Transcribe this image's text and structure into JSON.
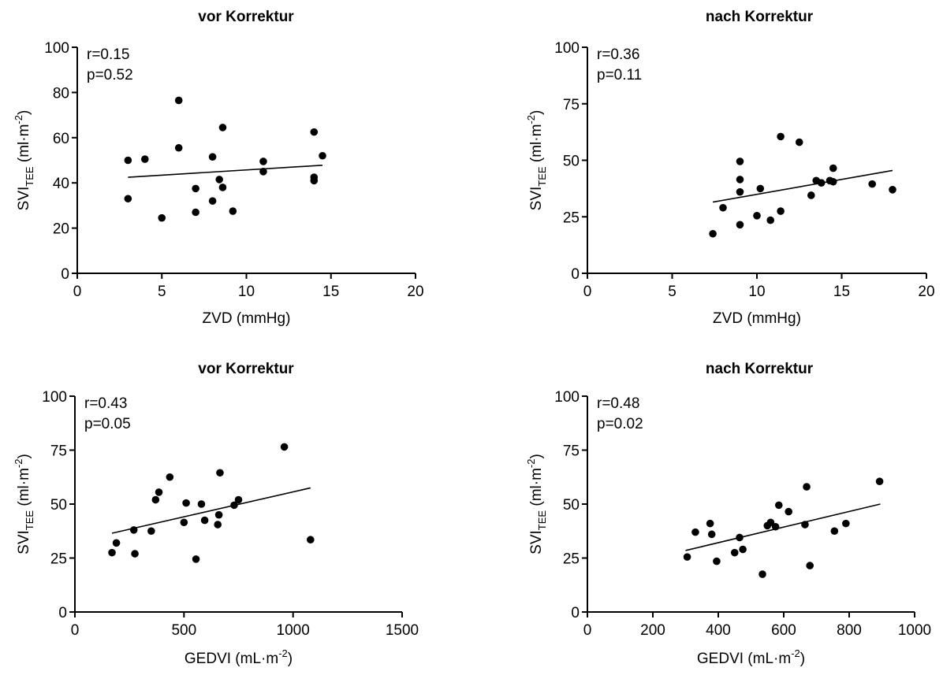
{
  "chart_data": [
    {
      "type": "scatter",
      "title": "vor Korrektur",
      "xlabel": "ZVD (mmHg)",
      "ylabel": {
        "base": "SVI",
        "sub": "TEE",
        "unit_pre": " (ml·m",
        "unit_sup": "-2",
        "unit_post": ")"
      },
      "xlim": [
        0,
        20
      ],
      "ylim": [
        0,
        100
      ],
      "xticks": [
        0,
        5,
        10,
        15,
        20
      ],
      "yticks": [
        0,
        20,
        40,
        60,
        80,
        100
      ],
      "stats": [
        "r=0.15",
        "p=0.52"
      ],
      "regression": [
        [
          3,
          42.5
        ],
        [
          14.5,
          47.8
        ]
      ],
      "points": [
        {
          "x": 3,
          "y": 50
        },
        {
          "x": 3,
          "y": 33
        },
        {
          "x": 4,
          "y": 50.5
        },
        {
          "x": 5,
          "y": 24.5
        },
        {
          "x": 6,
          "y": 76.5
        },
        {
          "x": 6,
          "y": 55.5
        },
        {
          "x": 7,
          "y": 37.5
        },
        {
          "x": 7,
          "y": 27
        },
        {
          "x": 8,
          "y": 51.5
        },
        {
          "x": 8,
          "y": 32
        },
        {
          "x": 8.4,
          "y": 41.5
        },
        {
          "x": 8.6,
          "y": 64.5
        },
        {
          "x": 8.6,
          "y": 38
        },
        {
          "x": 9.2,
          "y": 27.5
        },
        {
          "x": 11,
          "y": 49.5
        },
        {
          "x": 11,
          "y": 45
        },
        {
          "x": 14,
          "y": 62.5
        },
        {
          "x": 14,
          "y": 42.5
        },
        {
          "x": 14,
          "y": 41
        },
        {
          "x": 14.5,
          "y": 52
        }
      ]
    },
    {
      "type": "scatter",
      "title": "nach Korrektur",
      "xlabel": "ZVD (mmHg)",
      "ylabel": {
        "base": "SVI",
        "sub": "TEE",
        "unit_pre": " (ml·m",
        "unit_sup": "-2",
        "unit_post": ")"
      },
      "xlim": [
        0,
        20
      ],
      "ylim": [
        0,
        100
      ],
      "xticks": [
        0,
        5,
        10,
        15,
        20
      ],
      "yticks": [
        0,
        25,
        50,
        75,
        100
      ],
      "stats": [
        "r=0.36",
        "p=0.11"
      ],
      "regression": [
        [
          7.4,
          31.5
        ],
        [
          18,
          45.5
        ]
      ],
      "points": [
        {
          "x": 7.4,
          "y": 17.5
        },
        {
          "x": 8,
          "y": 29
        },
        {
          "x": 9,
          "y": 49.5
        },
        {
          "x": 9,
          "y": 41.5
        },
        {
          "x": 9,
          "y": 36
        },
        {
          "x": 9,
          "y": 21.5
        },
        {
          "x": 10,
          "y": 25.5
        },
        {
          "x": 10.2,
          "y": 37.5
        },
        {
          "x": 10.8,
          "y": 23.5
        },
        {
          "x": 11.4,
          "y": 60.5
        },
        {
          "x": 11.4,
          "y": 27.5
        },
        {
          "x": 12.5,
          "y": 58
        },
        {
          "x": 13.2,
          "y": 34.5
        },
        {
          "x": 13.5,
          "y": 41
        },
        {
          "x": 13.8,
          "y": 40
        },
        {
          "x": 14.3,
          "y": 41
        },
        {
          "x": 14.5,
          "y": 46.5
        },
        {
          "x": 14.5,
          "y": 40.5
        },
        {
          "x": 16.8,
          "y": 39.5
        },
        {
          "x": 18,
          "y": 37
        }
      ]
    },
    {
      "type": "scatter",
      "title": "vor Korrektur",
      "xlabel": {
        "pre": "GEDVI (mL·m",
        "sup": "-2",
        "post": ")"
      },
      "ylabel": {
        "base": "SVI",
        "sub": "TEE",
        "unit_pre": " (ml·m",
        "unit_sup": "-2",
        "unit_post": ")"
      },
      "xlim": [
        0,
        1500
      ],
      "ylim": [
        0,
        100
      ],
      "xticks": [
        0,
        500,
        1000,
        1500
      ],
      "yticks": [
        0,
        25,
        50,
        75,
        100
      ],
      "stats": [
        "r=0.43",
        "p=0.05"
      ],
      "regression": [
        [
          170,
          36.5
        ],
        [
          1080,
          57.5
        ]
      ],
      "points": [
        {
          "x": 170,
          "y": 27.5
        },
        {
          "x": 190,
          "y": 32
        },
        {
          "x": 270,
          "y": 38
        },
        {
          "x": 275,
          "y": 27
        },
        {
          "x": 350,
          "y": 37.5
        },
        {
          "x": 370,
          "y": 52
        },
        {
          "x": 385,
          "y": 55.5
        },
        {
          "x": 435,
          "y": 62.5
        },
        {
          "x": 500,
          "y": 41.5
        },
        {
          "x": 510,
          "y": 50.5
        },
        {
          "x": 555,
          "y": 24.5
        },
        {
          "x": 580,
          "y": 50
        },
        {
          "x": 595,
          "y": 42.5
        },
        {
          "x": 655,
          "y": 40.5
        },
        {
          "x": 660,
          "y": 45
        },
        {
          "x": 665,
          "y": 64.5
        },
        {
          "x": 730,
          "y": 49.5
        },
        {
          "x": 750,
          "y": 52
        },
        {
          "x": 960,
          "y": 76.5
        },
        {
          "x": 1080,
          "y": 33.5
        }
      ]
    },
    {
      "type": "scatter",
      "title": "nach Korrektur",
      "xlabel": {
        "pre": "GEDVI (mL·m",
        "sup": "-2",
        "post": ")"
      },
      "ylabel": {
        "base": "SVI",
        "sub": "TEE",
        "unit_pre": " (ml·m",
        "unit_sup": "-2",
        "unit_post": ")"
      },
      "xlim": [
        0,
        1000
      ],
      "ylim": [
        0,
        100
      ],
      "xticks": [
        0,
        200,
        400,
        600,
        800,
        1000
      ],
      "yticks": [
        0,
        25,
        50,
        75,
        100
      ],
      "stats": [
        "r=0.48",
        "p=0.02"
      ],
      "regression": [
        [
          300,
          28.5
        ],
        [
          895,
          50
        ]
      ],
      "points": [
        {
          "x": 305,
          "y": 25.5
        },
        {
          "x": 330,
          "y": 37
        },
        {
          "x": 375,
          "y": 41
        },
        {
          "x": 380,
          "y": 36
        },
        {
          "x": 395,
          "y": 23.5
        },
        {
          "x": 450,
          "y": 27.5
        },
        {
          "x": 465,
          "y": 34.5
        },
        {
          "x": 475,
          "y": 29
        },
        {
          "x": 535,
          "y": 17.5
        },
        {
          "x": 550,
          "y": 40
        },
        {
          "x": 560,
          "y": 41.5
        },
        {
          "x": 575,
          "y": 39.5
        },
        {
          "x": 585,
          "y": 49.5
        },
        {
          "x": 615,
          "y": 46.5
        },
        {
          "x": 665,
          "y": 40.5
        },
        {
          "x": 670,
          "y": 58
        },
        {
          "x": 680,
          "y": 21.5
        },
        {
          "x": 755,
          "y": 37.5
        },
        {
          "x": 790,
          "y": 41
        },
        {
          "x": 893,
          "y": 60.5
        }
      ]
    }
  ]
}
